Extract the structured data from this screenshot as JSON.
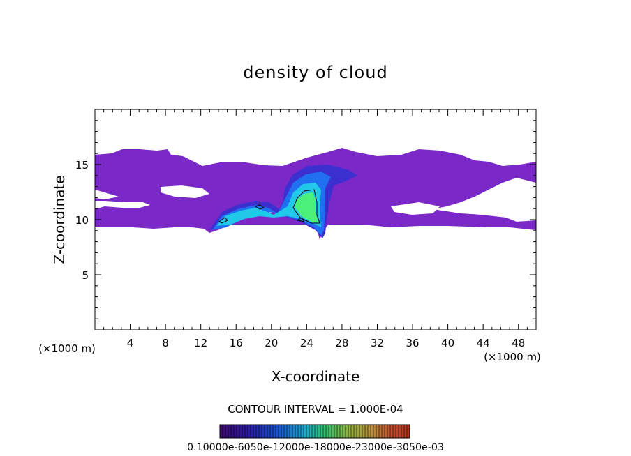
{
  "chart_data": {
    "type": "contour",
    "title": "density of cloud",
    "xlabel": "X-coordinate",
    "ylabel": "Z-coordinate",
    "x_unit_left": "(×1000 m)",
    "x_unit_right": "(×1000 m)",
    "xlim": [
      0,
      50
    ],
    "ylim": [
      0,
      20
    ],
    "xticks": [
      "4",
      "8",
      "12",
      "16",
      "20",
      "24",
      "28",
      "32",
      "36",
      "40",
      "44",
      "48"
    ],
    "yticks": [
      "5",
      "10",
      "15"
    ],
    "contour_interval_text": "CONTOUR INTERVAL = 1.000E-04",
    "colorbar_label_text": "0.10000e-6050e-12000e-18000e-23000e-3050e-03"
  },
  "colors": {
    "cloud_low": "#7a28c8",
    "cloud_mid": "#3b2fd0",
    "cloud_blue": "#1f6ff0",
    "cloud_cyan": "#21c8e8",
    "cloud_green": "#4bf07a"
  }
}
